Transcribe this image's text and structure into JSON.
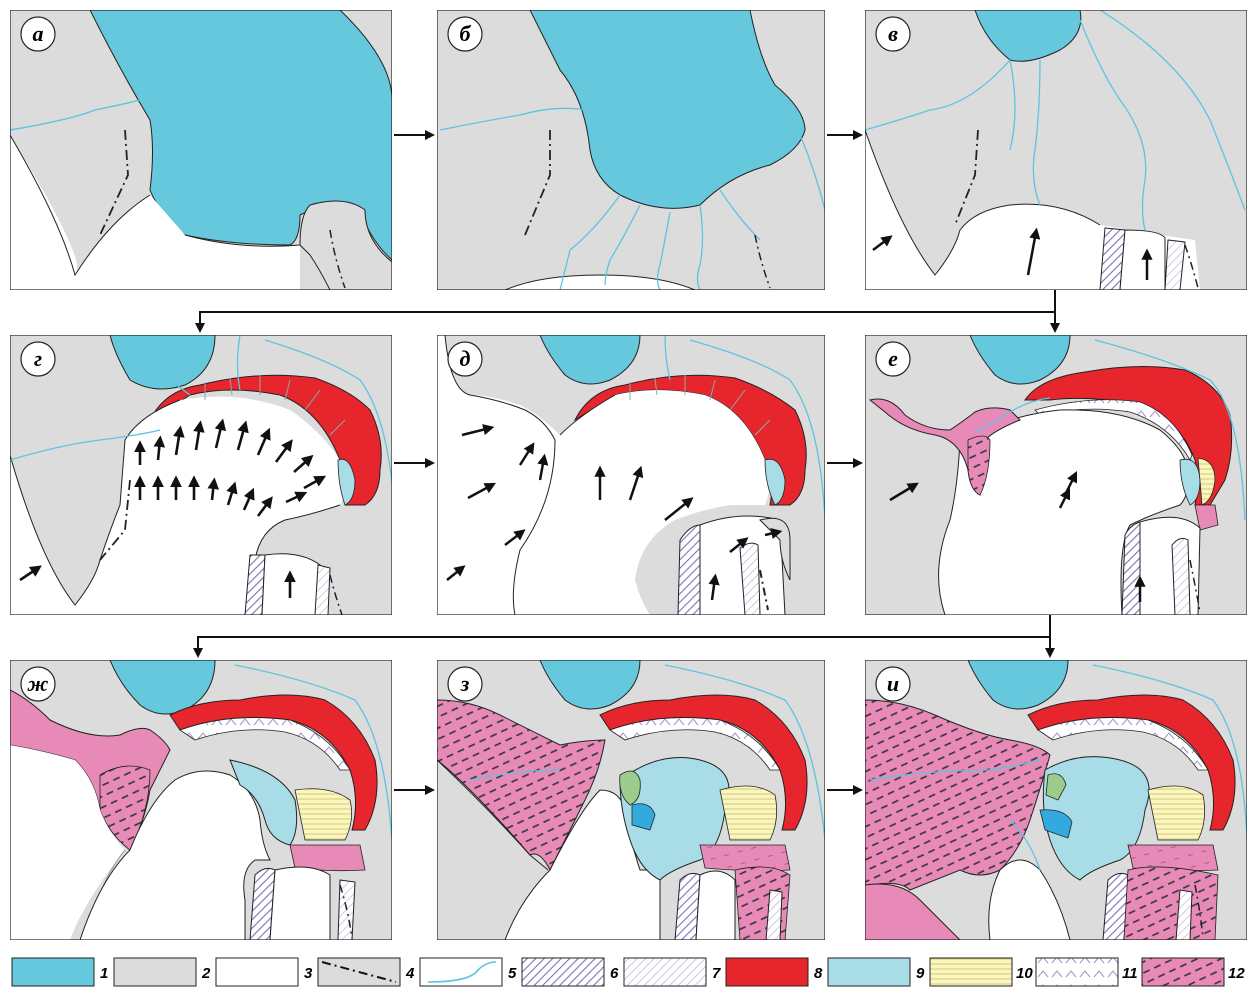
{
  "panels": [
    {
      "id": "a",
      "label": "а"
    },
    {
      "id": "b",
      "label": "б"
    },
    {
      "id": "v",
      "label": "в"
    },
    {
      "id": "g",
      "label": "г"
    },
    {
      "id": "d",
      "label": "д"
    },
    {
      "id": "e",
      "label": "е"
    },
    {
      "id": "zh",
      "label": "ж"
    },
    {
      "id": "z",
      "label": "з"
    },
    {
      "id": "i",
      "label": "и"
    }
  ],
  "legend": [
    {
      "num": "1",
      "swatch": "lake"
    },
    {
      "num": "2",
      "swatch": "grey"
    },
    {
      "num": "3",
      "swatch": "white"
    },
    {
      "num": "4",
      "swatch": "dashdot"
    },
    {
      "num": "5",
      "swatch": "river"
    },
    {
      "num": "6",
      "swatch": "hatch-dark"
    },
    {
      "num": "7",
      "swatch": "hatch-light"
    },
    {
      "num": "8",
      "swatch": "red"
    },
    {
      "num": "9",
      "swatch": "lightblue"
    },
    {
      "num": "10",
      "swatch": "yellow-lines"
    },
    {
      "num": "11",
      "swatch": "chevrons"
    },
    {
      "num": "12",
      "swatch": "pink-hatch"
    }
  ],
  "colors": {
    "lake": "#66c8dc",
    "grey": "#dcdcdc",
    "red": "#e6262c",
    "pink": "#e88ab8",
    "lightblue": "#a8dce6",
    "yellow": "#fbf6c0",
    "river": "#5cc4e0",
    "hatch": "#8877bb"
  }
}
